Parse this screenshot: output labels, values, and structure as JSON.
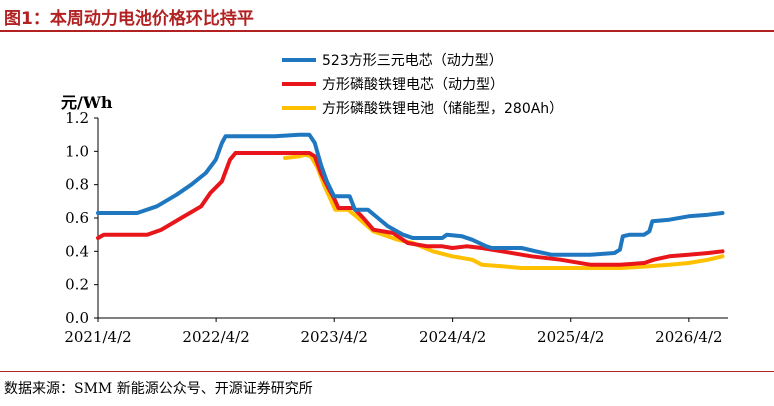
{
  "figure": {
    "title": "图1：本周动力电池价格环比持平",
    "source": "数据来源：SMM 新能源公众号、开源证券研究所"
  },
  "chart_data": {
    "type": "line",
    "ylabel": "元/Wh",
    "ylim": [
      0.0,
      1.2
    ],
    "yticks": [
      "0.0",
      "0.2",
      "0.4",
      "0.6",
      "0.8",
      "1.0",
      "1.2"
    ],
    "xlim": [
      "2021-04-02",
      "2026-08-01"
    ],
    "xticks": [
      "2021/4/2",
      "2022/4/2",
      "2023/4/2",
      "2024/4/2",
      "2025/4/2",
      "2026/4/2"
    ],
    "grid": false,
    "legend_position": "top-right",
    "series": [
      {
        "name": "523方形三元电芯（动力型）",
        "color": "#1f77c0",
        "points": [
          [
            "2021-04-02",
            0.63
          ],
          [
            "2021-08-01",
            0.63
          ],
          [
            "2021-10-01",
            0.67
          ],
          [
            "2021-12-01",
            0.74
          ],
          [
            "2022-01-15",
            0.8
          ],
          [
            "2022-03-01",
            0.87
          ],
          [
            "2022-04-01",
            0.95
          ],
          [
            "2022-04-20",
            1.05
          ],
          [
            "2022-05-01",
            1.09
          ],
          [
            "2022-07-01",
            1.09
          ],
          [
            "2022-10-01",
            1.09
          ],
          [
            "2022-12-15",
            1.1
          ],
          [
            "2023-01-15",
            1.1
          ],
          [
            "2023-02-01",
            1.05
          ],
          [
            "2023-02-20",
            0.92
          ],
          [
            "2023-03-10",
            0.82
          ],
          [
            "2023-03-25",
            0.76
          ],
          [
            "2023-04-02",
            0.73
          ],
          [
            "2023-05-20",
            0.73
          ],
          [
            "2023-06-05",
            0.65
          ],
          [
            "2023-07-15",
            0.65
          ],
          [
            "2023-08-15",
            0.6
          ],
          [
            "2023-09-15",
            0.55
          ],
          [
            "2023-11-01",
            0.5
          ],
          [
            "2023-12-01",
            0.48
          ],
          [
            "2024-03-01",
            0.48
          ],
          [
            "2024-03-15",
            0.5
          ],
          [
            "2024-05-01",
            0.49
          ],
          [
            "2024-06-01",
            0.47
          ],
          [
            "2024-07-15",
            0.43
          ],
          [
            "2024-08-01",
            0.42
          ],
          [
            "2024-11-01",
            0.42
          ],
          [
            "2024-12-15",
            0.4
          ],
          [
            "2025-02-01",
            0.38
          ],
          [
            "2025-06-01",
            0.38
          ],
          [
            "2025-08-15",
            0.39
          ],
          [
            "2025-09-01",
            0.41
          ],
          [
            "2025-09-10",
            0.49
          ],
          [
            "2025-10-01",
            0.5
          ],
          [
            "2025-11-15",
            0.5
          ],
          [
            "2025-12-01",
            0.52
          ],
          [
            "2025-12-10",
            0.58
          ],
          [
            "2026-02-01",
            0.59
          ],
          [
            "2026-04-01",
            0.61
          ],
          [
            "2026-06-01",
            0.62
          ],
          [
            "2026-07-15",
            0.63
          ]
        ]
      },
      {
        "name": "方形磷酸铁锂电芯（动力型）",
        "color": "#e8161b",
        "points": [
          [
            "2021-04-02",
            0.48
          ],
          [
            "2021-04-20",
            0.5
          ],
          [
            "2021-09-01",
            0.5
          ],
          [
            "2021-10-15",
            0.53
          ],
          [
            "2021-12-15",
            0.6
          ],
          [
            "2022-02-15",
            0.67
          ],
          [
            "2022-03-15",
            0.75
          ],
          [
            "2022-04-20",
            0.82
          ],
          [
            "2022-05-15",
            0.95
          ],
          [
            "2022-06-01",
            0.99
          ],
          [
            "2022-12-15",
            0.99
          ],
          [
            "2023-01-15",
            0.99
          ],
          [
            "2023-02-01",
            0.97
          ],
          [
            "2023-02-20",
            0.87
          ],
          [
            "2023-03-15",
            0.78
          ],
          [
            "2023-04-01",
            0.72
          ],
          [
            "2023-04-15",
            0.66
          ],
          [
            "2023-06-01",
            0.66
          ],
          [
            "2023-07-01",
            0.6
          ],
          [
            "2023-08-01",
            0.53
          ],
          [
            "2023-10-01",
            0.51
          ],
          [
            "2023-11-15",
            0.45
          ],
          [
            "2024-01-15",
            0.43
          ],
          [
            "2024-03-01",
            0.43
          ],
          [
            "2024-04-01",
            0.42
          ],
          [
            "2024-05-15",
            0.43
          ],
          [
            "2024-07-01",
            0.42
          ],
          [
            "2024-09-01",
            0.4
          ],
          [
            "2024-12-01",
            0.37
          ],
          [
            "2025-03-01",
            0.35
          ],
          [
            "2025-06-01",
            0.32
          ],
          [
            "2025-09-01",
            0.32
          ],
          [
            "2025-11-15",
            0.33
          ],
          [
            "2025-12-15",
            0.35
          ],
          [
            "2026-02-01",
            0.37
          ],
          [
            "2026-04-01",
            0.38
          ],
          [
            "2026-06-01",
            0.39
          ],
          [
            "2026-07-15",
            0.4
          ]
        ]
      },
      {
        "name": "方形磷酸铁锂电池（储能型，280Ah）",
        "color": "#ffc000",
        "points": [
          [
            "2022-11-01",
            0.96
          ],
          [
            "2022-12-15",
            0.97
          ],
          [
            "2023-01-01",
            0.98
          ],
          [
            "2023-01-20",
            0.97
          ],
          [
            "2023-02-10",
            0.9
          ],
          [
            "2023-03-01",
            0.8
          ],
          [
            "2023-03-20",
            0.72
          ],
          [
            "2023-04-05",
            0.65
          ],
          [
            "2023-05-15",
            0.65
          ],
          [
            "2023-06-15",
            0.6
          ],
          [
            "2023-08-01",
            0.52
          ],
          [
            "2023-09-01",
            0.5
          ],
          [
            "2023-10-15",
            0.47
          ],
          [
            "2023-12-01",
            0.45
          ],
          [
            "2024-02-01",
            0.4
          ],
          [
            "2024-04-01",
            0.37
          ],
          [
            "2024-06-01",
            0.35
          ],
          [
            "2024-07-01",
            0.32
          ],
          [
            "2024-09-01",
            0.31
          ],
          [
            "2024-11-01",
            0.3
          ],
          [
            "2025-02-01",
            0.3
          ],
          [
            "2025-06-01",
            0.3
          ],
          [
            "2025-09-01",
            0.3
          ],
          [
            "2025-12-01",
            0.31
          ],
          [
            "2026-02-01",
            0.32
          ],
          [
            "2026-04-01",
            0.33
          ],
          [
            "2026-06-01",
            0.35
          ],
          [
            "2026-07-15",
            0.37
          ]
        ]
      }
    ]
  }
}
